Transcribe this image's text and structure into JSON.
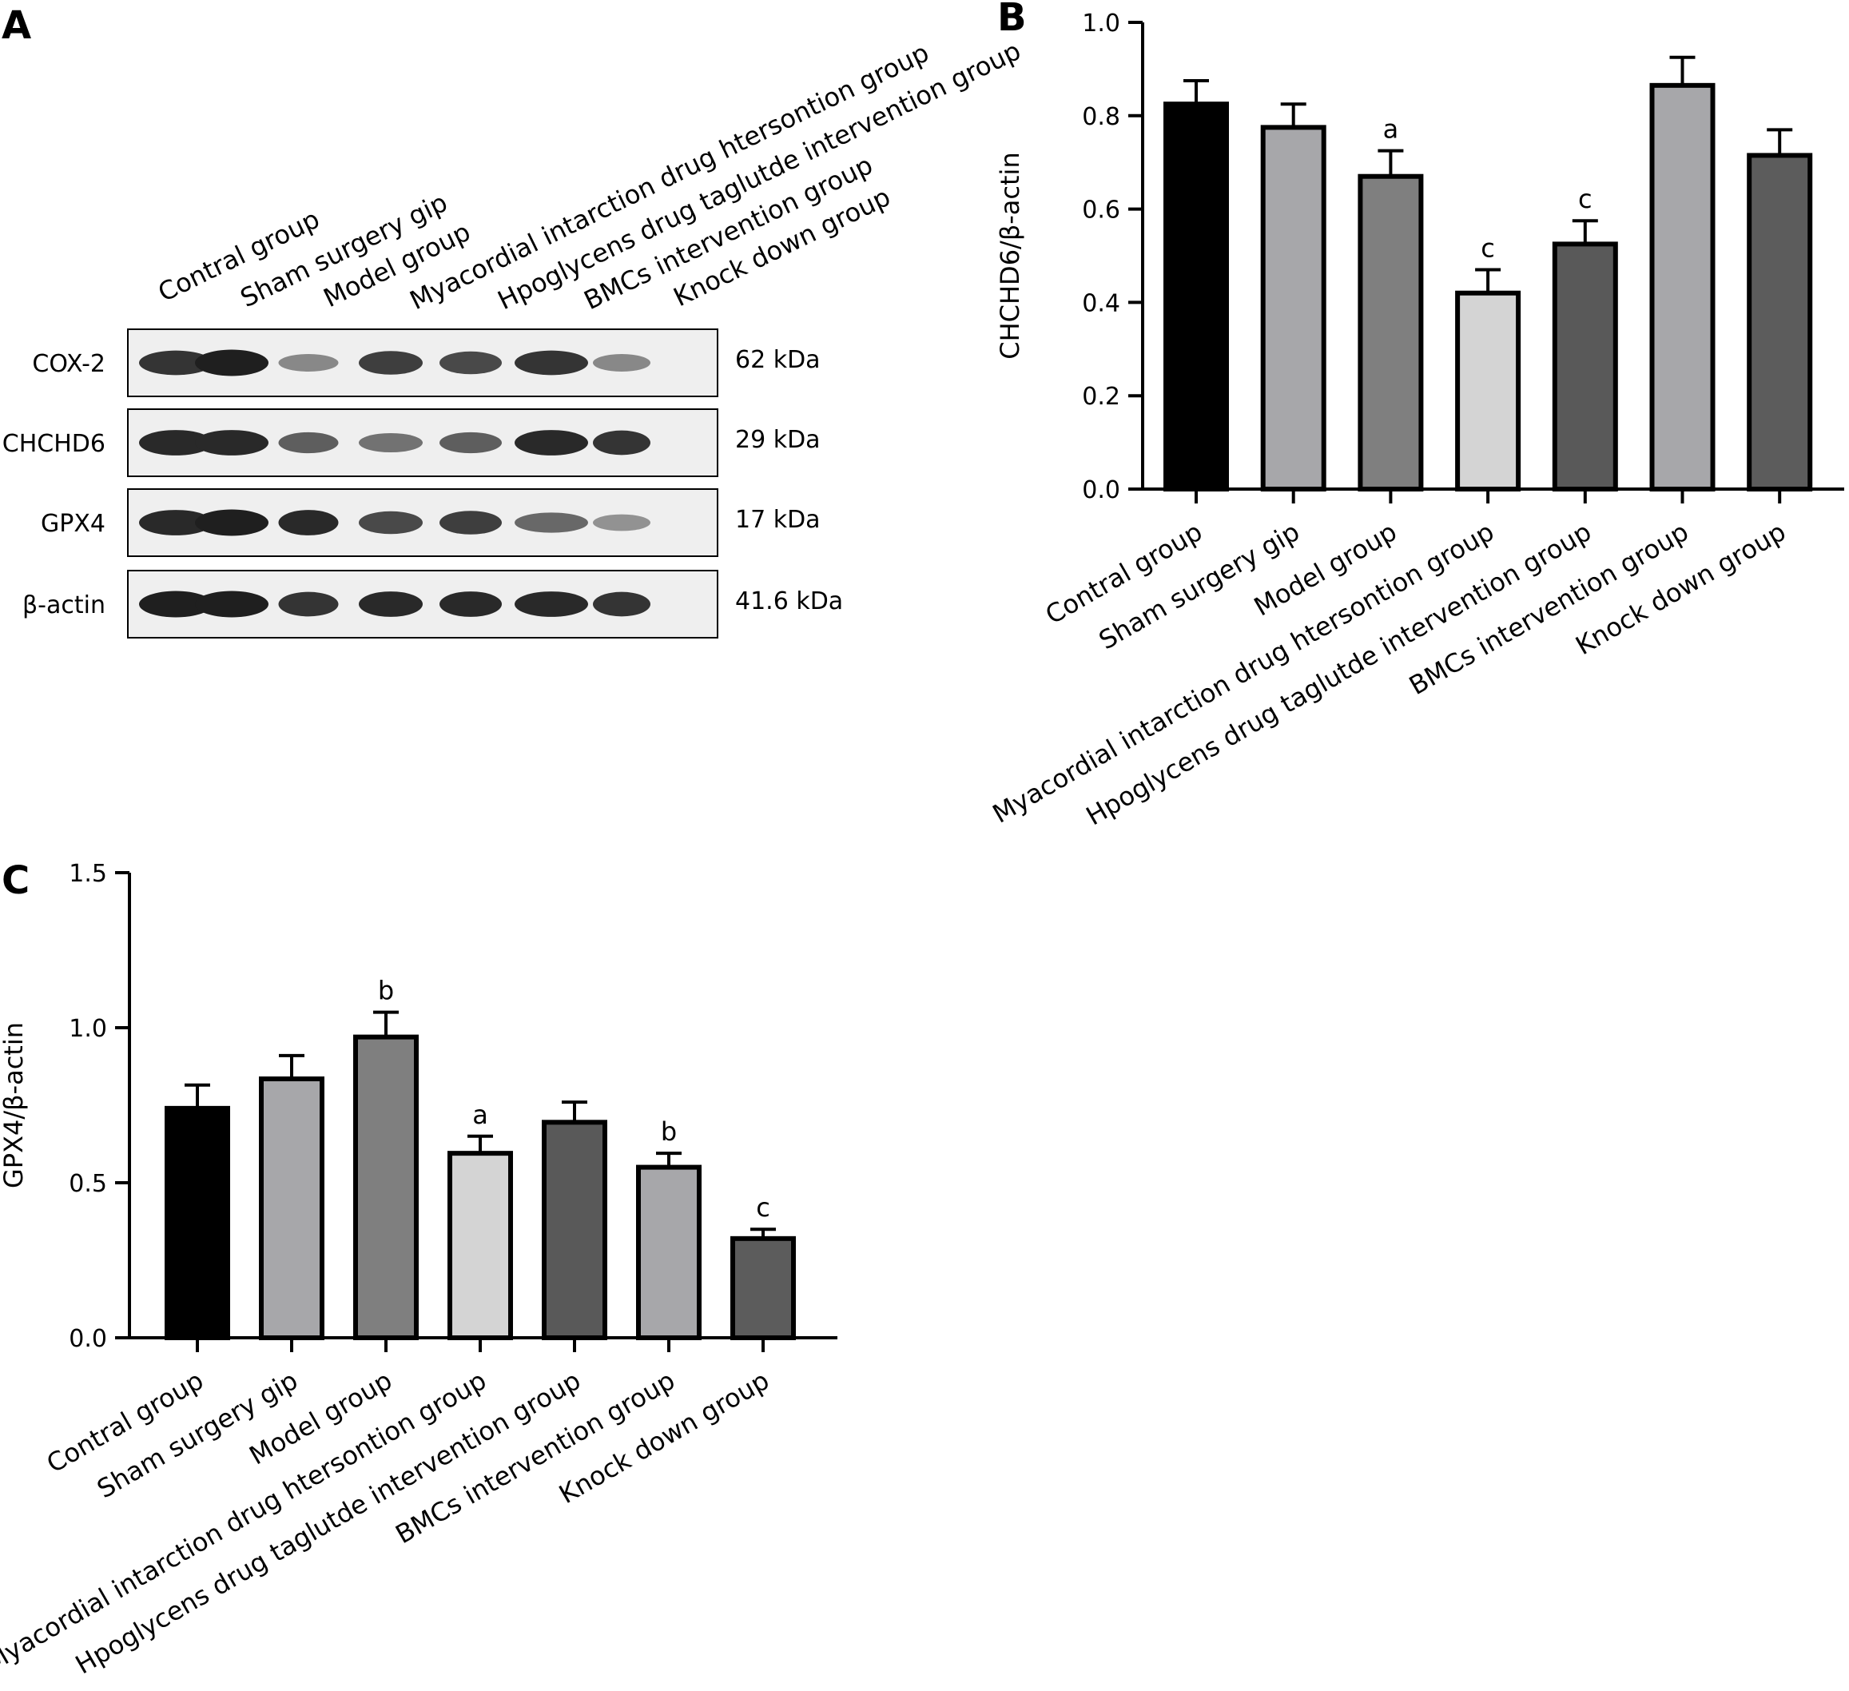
{
  "panels": {
    "a": "A",
    "b": "B",
    "c": "C"
  },
  "western_blot": {
    "lanes": [
      "Contral group",
      "Sham surgery gip",
      "Model group",
      "Myacordial intarction drug htersontion group",
      "Hpoglycens drug taglutde intervention group",
      "BMCs intervention group",
      "Knock down group"
    ],
    "rows": [
      {
        "protein": "COX-2",
        "weight": "62 kDa",
        "intensity": [
          0.85,
          0.95,
          0.45,
          0.8,
          0.75,
          0.85,
          0.45
        ]
      },
      {
        "protein": "CHCHD6",
        "weight": "29 kDa",
        "intensity": [
          0.9,
          0.9,
          0.65,
          0.55,
          0.65,
          0.9,
          0.85
        ]
      },
      {
        "protein": "GPX4",
        "weight": "17 kDa",
        "intensity": [
          0.9,
          0.95,
          0.9,
          0.75,
          0.8,
          0.6,
          0.4
        ]
      },
      {
        "protein": "β-actin",
        "weight": "41.6 kDa",
        "intensity": [
          0.95,
          0.95,
          0.85,
          0.9,
          0.9,
          0.9,
          0.85
        ]
      }
    ]
  },
  "bar_colors": [
    "#000000",
    "#a7a7aa",
    "#7f7f7f",
    "#d4d4d4",
    "#595959",
    "#a7a7aa",
    "#5c5c5c"
  ],
  "chart_data": [
    {
      "type": "bar",
      "panel": "B",
      "categories": [
        "Contral group",
        "Sham surgery gip",
        "Model group",
        "Myacordial intarction drug htersontion group",
        "Hpoglycens drug taglutde intervention group",
        "BMCs intervention group",
        "Knock down group"
      ],
      "values": [
        0.825,
        0.775,
        0.67,
        0.42,
        0.525,
        0.865,
        0.715
      ],
      "errors": [
        0.05,
        0.05,
        0.055,
        0.05,
        0.05,
        0.06,
        0.055
      ],
      "annotations": [
        "",
        "",
        "a",
        "c",
        "c",
        "",
        ""
      ],
      "ylabel": "CHCHD6/β-actin",
      "ylim": [
        0,
        1.0
      ],
      "yticks": [
        "0.0",
        "0.2",
        "0.4",
        "0.6",
        "0.8",
        "1.0"
      ],
      "grid": false
    },
    {
      "type": "bar",
      "panel": "C",
      "categories": [
        "Contral group",
        "Sham surgery gip",
        "Model group",
        "Myacordial intarction drug htersontion group",
        "Hpoglycens drug taglutde intervention group",
        "BMCs intervention group",
        "Knock down group"
      ],
      "values": [
        0.74,
        0.835,
        0.97,
        0.595,
        0.695,
        0.55,
        0.32
      ],
      "errors": [
        0.075,
        0.075,
        0.08,
        0.055,
        0.065,
        0.045,
        0.03
      ],
      "annotations": [
        "",
        "",
        "b",
        "a",
        "",
        "b",
        "c"
      ],
      "ylabel": "GPX4/β-actin",
      "ylim": [
        0,
        1.5
      ],
      "yticks": [
        "0.0",
        "0.5",
        "1.0",
        "1.5"
      ],
      "grid": false
    }
  ]
}
